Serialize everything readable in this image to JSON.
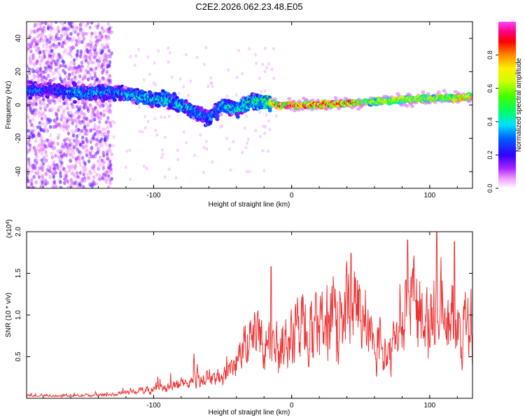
{
  "title": "C2E2.2026.062.23.48.E05",
  "chart_data": [
    {
      "type": "heatmap",
      "xlabel": "Height of straight line (km)",
      "ylabel": "Frequency (Hz)",
      "xlim": [
        -192,
        131
      ],
      "ylim": [
        -50,
        50
      ],
      "xticks": [
        -100,
        0,
        100
      ],
      "xtick_labels": [
        "-100",
        "0",
        "100"
      ],
      "yticks": [
        -40,
        -20,
        0,
        20,
        40
      ],
      "ytick_labels": [
        "-40",
        "-20",
        "0",
        "20",
        "40"
      ],
      "colorbar": {
        "label": "Normalized spectral amplitude",
        "range": [
          0,
          1
        ],
        "ticks": [
          0.0,
          0.2,
          0.4,
          0.6,
          0.8
        ],
        "tick_labels": [
          "0.0",
          "0.2",
          "0.4",
          "0.6",
          "0.8"
        ],
        "colors": [
          "#ffffff",
          "#cc55ff",
          "#8a00ff",
          "#3a00ff",
          "#0050ff",
          "#00ddff",
          "#00ff70",
          "#30ff00",
          "#c8ff00",
          "#ffee00",
          "#ff8800",
          "#ff0000",
          "#ff0088",
          "#ff40ff"
        ]
      },
      "ridge": [
        {
          "x": -190,
          "f": 9,
          "a": 0.35
        },
        {
          "x": -175,
          "f": 9,
          "a": 0.3
        },
        {
          "x": -150,
          "f": 7,
          "a": 0.4
        },
        {
          "x": -130,
          "f": 8,
          "a": 0.35
        },
        {
          "x": -110,
          "f": 5,
          "a": 0.42
        },
        {
          "x": -90,
          "f": 3,
          "a": 0.45
        },
        {
          "x": -75,
          "f": -2,
          "a": 0.42
        },
        {
          "x": -60,
          "f": -8,
          "a": 0.38
        },
        {
          "x": -50,
          "f": 0,
          "a": 0.4
        },
        {
          "x": -40,
          "f": -3,
          "a": 0.45
        },
        {
          "x": -30,
          "f": 2,
          "a": 0.5
        },
        {
          "x": -20,
          "f": 2,
          "a": 0.5
        },
        {
          "x": -10,
          "f": 0,
          "a": 0.85
        },
        {
          "x": 0,
          "f": 0,
          "a": 0.9
        },
        {
          "x": 20,
          "f": 0,
          "a": 0.9
        },
        {
          "x": 40,
          "f": 1,
          "a": 0.88
        },
        {
          "x": 60,
          "f": 2,
          "a": 0.6
        },
        {
          "x": 80,
          "f": 3,
          "a": 0.75
        },
        {
          "x": 100,
          "f": 4,
          "a": 0.65
        },
        {
          "x": 120,
          "f": 4,
          "a": 0.75
        },
        {
          "x": 131,
          "f": 5,
          "a": 0.7
        }
      ]
    },
    {
      "type": "line",
      "xlabel": "Height of straight line (km)",
      "ylabel": "SNR (10 * v/v)",
      "multiplier_label": "(x10",
      "multiplier_exp": "4",
      "xlim": [
        -192,
        131
      ],
      "ylim": [
        0,
        2.0
      ],
      "xticks": [
        -100,
        0,
        100
      ],
      "xtick_labels": [
        "-100",
        "0",
        "100"
      ],
      "yticks": [
        0.5,
        1.0,
        1.5,
        2.0
      ],
      "ytick_labels": [
        "0.5",
        "1.0",
        "1.5",
        "2.0"
      ],
      "color": "#ee3333",
      "envelope": [
        {
          "x": -192,
          "y": 0.04
        },
        {
          "x": -160,
          "y": 0.04
        },
        {
          "x": -130,
          "y": 0.06
        },
        {
          "x": -110,
          "y": 0.12
        },
        {
          "x": -90,
          "y": 0.18
        },
        {
          "x": -70,
          "y": 0.28
        },
        {
          "x": -50,
          "y": 0.35
        },
        {
          "x": -40,
          "y": 0.55
        },
        {
          "x": -30,
          "y": 0.9
        },
        {
          "x": -20,
          "y": 0.95
        },
        {
          "x": -10,
          "y": 0.85
        },
        {
          "x": 0,
          "y": 1.0
        },
        {
          "x": 10,
          "y": 1.2
        },
        {
          "x": 20,
          "y": 1.1
        },
        {
          "x": 30,
          "y": 1.3
        },
        {
          "x": 40,
          "y": 1.4
        },
        {
          "x": 50,
          "y": 1.25
        },
        {
          "x": 60,
          "y": 1.1
        },
        {
          "x": 70,
          "y": 0.6
        },
        {
          "x": 80,
          "y": 1.4
        },
        {
          "x": 90,
          "y": 1.55
        },
        {
          "x": 100,
          "y": 1.2
        },
        {
          "x": 110,
          "y": 1.5
        },
        {
          "x": 120,
          "y": 1.1
        },
        {
          "x": 131,
          "y": 1.2
        }
      ],
      "peaks": [
        {
          "x": -15,
          "y": 1.58
        },
        {
          "x": 43,
          "y": 1.74
        },
        {
          "x": 84,
          "y": 1.9
        },
        {
          "x": 105,
          "y": 2.0
        },
        {
          "x": 118,
          "y": 1.88
        }
      ]
    }
  ]
}
